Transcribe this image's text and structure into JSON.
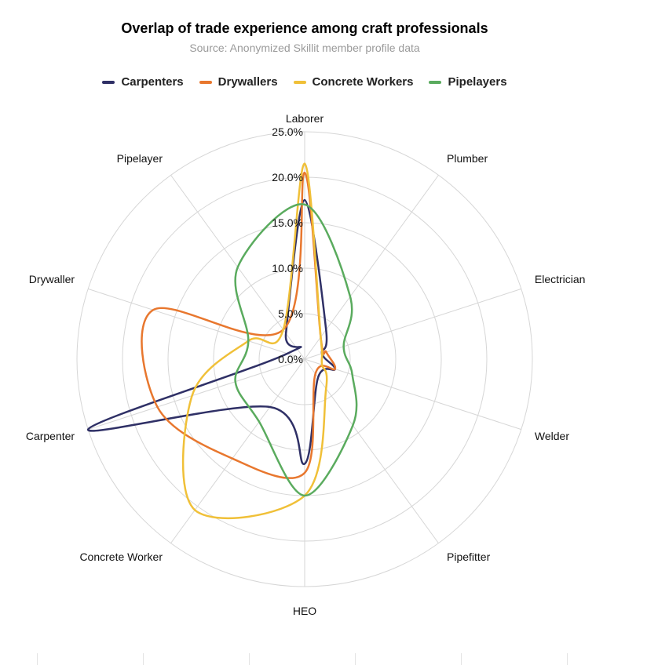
{
  "chart_data": {
    "type": "radar",
    "title": "Overlap of trade experience among craft professionals",
    "subtitle": "Source: Anonymized Skillit member profile data",
    "axes": [
      "Laborer",
      "Plumber",
      "Electrician",
      "Welder",
      "Pipefitter",
      "HEO",
      "Concrete Worker",
      "Carpenter",
      "Drywaller",
      "Pipelayer"
    ],
    "r_range": [
      0,
      25
    ],
    "ticks": [
      0,
      5,
      10,
      15,
      20,
      25
    ],
    "tick_labels": [
      "0.0%",
      "5.0%",
      "10.0%",
      "15.0%",
      "20.0%",
      "25.0%"
    ],
    "legend_position": "top-center",
    "series": [
      {
        "name": "Carpenters",
        "color": "#2f3066",
        "values": [
          17.5,
          4.0,
          2.0,
          3.5,
          2.5,
          11.5,
          6.5,
          25.0,
          2.0,
          3.5
        ]
      },
      {
        "name": "Drywallers",
        "color": "#e8772e",
        "values": [
          20.5,
          3.0,
          2.5,
          3.5,
          2.0,
          12.5,
          13.5,
          17.0,
          17.5,
          4.0
        ]
      },
      {
        "name": "Concrete Workers",
        "color": "#f0c038",
        "values": [
          21.5,
          3.0,
          2.0,
          2.0,
          4.0,
          15.0,
          20.5,
          13.0,
          6.5,
          4.0
        ]
      },
      {
        "name": "Pipelayers",
        "color": "#5aab5e",
        "values": [
          17.0,
          8.5,
          4.5,
          5.5,
          9.0,
          15.0,
          8.5,
          8.0,
          6.5,
          12.5
        ]
      }
    ]
  }
}
